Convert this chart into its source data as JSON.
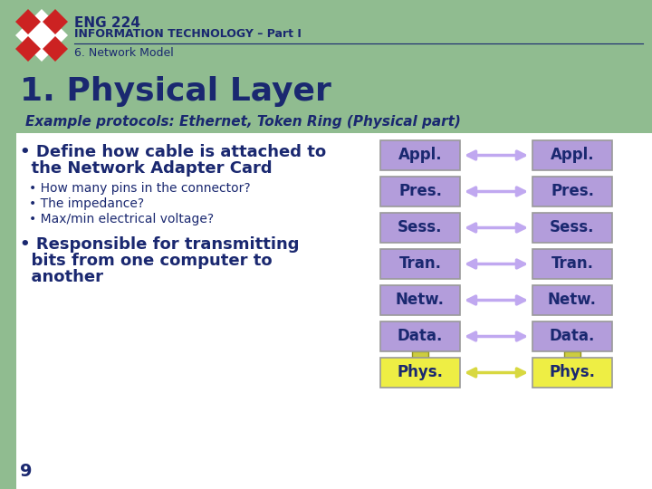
{
  "bg_color": "#ffffff",
  "header_bg": "#90bc90",
  "text_dark": "#1a2870",
  "title_text": "ENG 224",
  "subtitle_text": "INFORMATION TECHNOLOGY – Part I",
  "section_text": "6. Network Model",
  "main_title": "1. Physical Layer",
  "example_text": "Example protocols: Ethernet, Token Ring (Physical part)",
  "bullet1a": "• Define how cable is attached to",
  "bullet1b": "  the Network Adapter Card",
  "sub_bullet1": "• How many pins in the connector?",
  "sub_bullet2": "• The impedance?",
  "sub_bullet3": "• Max/min electrical voltage?",
  "bullet2a": "• Responsible for transmitting",
  "bullet2b": "  bits from one computer to",
  "bullet2c": "  another",
  "page_num": "9",
  "layers": [
    "Appl.",
    "Pres.",
    "Sess.",
    "Tran.",
    "Netw.",
    "Data.",
    "Phys."
  ],
  "layer_colors": [
    "#b39ddb",
    "#b39ddb",
    "#b39ddb",
    "#b39ddb",
    "#b39ddb",
    "#b39ddb",
    "#eeee44"
  ],
  "arrow_colors": [
    "#c0a8f0",
    "#c0a8f0",
    "#c0a8f0",
    "#c0a8f0",
    "#c0a8f0",
    "#c0a8f0",
    "#d8d840"
  ],
  "connector_color": "#cccc40",
  "header_text_color": "#1a2870"
}
